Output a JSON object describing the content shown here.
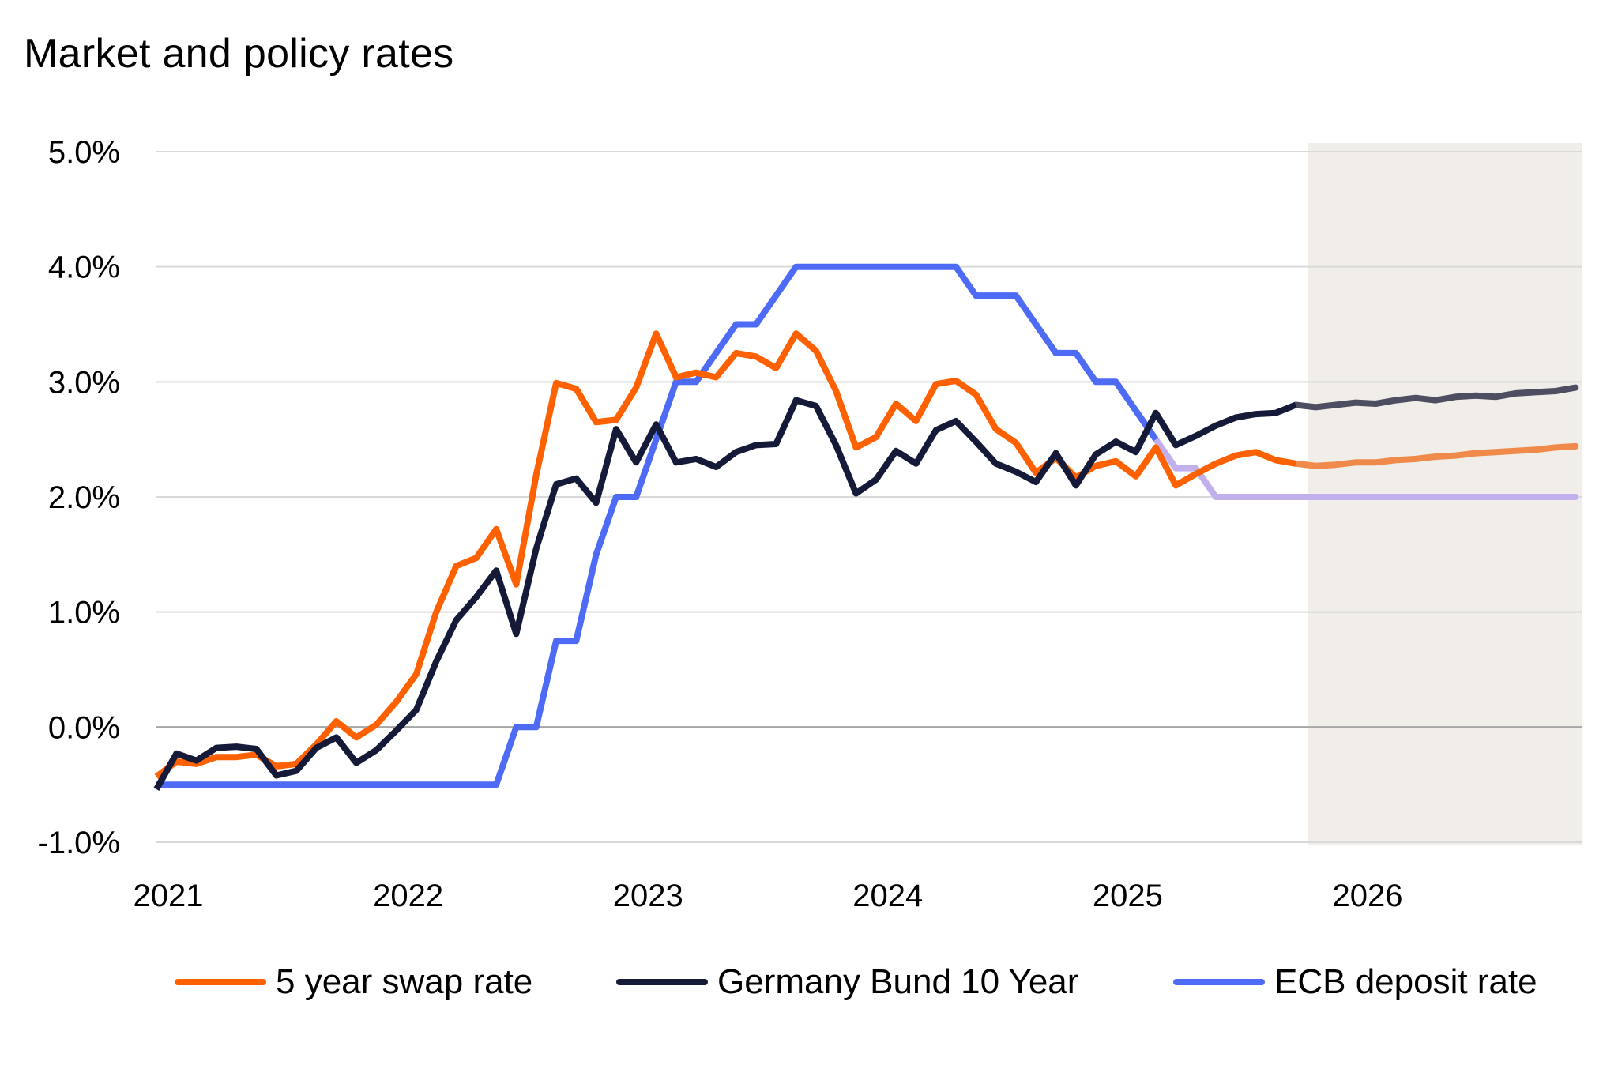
{
  "chart_data": {
    "type": "line",
    "title": "Market and policy rates",
    "xlabel": "",
    "ylabel": "",
    "ylim": [
      -1.0,
      5.0
    ],
    "yticks": [
      5.0,
      4.0,
      3.0,
      2.0,
      1.0,
      0.0,
      -1.0
    ],
    "ytick_labels": [
      "5.0%",
      "4.0%",
      "3.0%",
      "2.0%",
      "1.0%",
      "0.0%",
      "-1.0%"
    ],
    "xtick_labels": [
      "2021",
      "2022",
      "2023",
      "2024",
      "2025",
      "2026"
    ],
    "x_start": "2021-01",
    "x_frequency": "monthly",
    "n_periods": 72,
    "grid": true,
    "legend_position": "bottom",
    "forecast_shading": {
      "from_month_index": 57.6,
      "to_month_index": 71.3,
      "color": "#f1ede8"
    },
    "series": [
      {
        "name": "5 year swap rate",
        "color": "#ff6000",
        "forecast_color": "#f08a4b",
        "forecast_start_index": 57,
        "values": [
          -0.43,
          -0.3,
          -0.32,
          -0.26,
          -0.26,
          -0.24,
          -0.34,
          -0.32,
          -0.15,
          0.05,
          -0.09,
          0.02,
          0.22,
          0.46,
          1.0,
          1.4,
          1.47,
          1.72,
          1.24,
          2.19,
          2.99,
          2.94,
          2.65,
          2.67,
          2.95,
          3.42,
          3.04,
          3.08,
          3.04,
          3.25,
          3.22,
          3.12,
          3.42,
          3.27,
          2.92,
          2.43,
          2.52,
          2.81,
          2.66,
          2.98,
          3.01,
          2.89,
          2.59,
          2.47,
          2.21,
          2.34,
          2.17,
          2.27,
          2.31,
          2.18,
          2.43,
          2.1,
          2.2,
          2.29,
          2.36,
          2.39,
          2.32,
          2.29,
          2.27,
          2.28,
          2.3,
          2.3,
          2.32,
          2.33,
          2.35,
          2.36,
          2.38,
          2.39,
          2.4,
          2.41,
          2.43,
          2.44
        ]
      },
      {
        "name": "Germany Bund 10 Year",
        "color": "#141a38",
        "forecast_color": "#4e4e62",
        "forecast_start_index": 57,
        "values": [
          -0.54,
          -0.23,
          -0.29,
          -0.18,
          -0.17,
          -0.19,
          -0.42,
          -0.38,
          -0.18,
          -0.09,
          -0.31,
          -0.2,
          -0.03,
          0.15,
          0.57,
          0.93,
          1.13,
          1.36,
          0.81,
          1.55,
          2.11,
          2.16,
          1.95,
          2.59,
          2.3,
          2.63,
          2.3,
          2.33,
          2.26,
          2.39,
          2.45,
          2.46,
          2.84,
          2.79,
          2.45,
          2.03,
          2.15,
          2.4,
          2.29,
          2.58,
          2.66,
          2.48,
          2.29,
          2.22,
          2.13,
          2.38,
          2.1,
          2.37,
          2.48,
          2.39,
          2.73,
          2.45,
          2.53,
          2.62,
          2.69,
          2.72,
          2.73,
          2.8,
          2.78,
          2.8,
          2.82,
          2.81,
          2.84,
          2.86,
          2.84,
          2.87,
          2.88,
          2.87,
          2.9,
          2.91,
          2.92,
          2.95
        ]
      },
      {
        "name": "ECB deposit rate",
        "color": "#4d6bf5",
        "forecast_color": "#c2b0ec",
        "forecast_start_index": 50,
        "values": [
          -0.5,
          -0.5,
          -0.5,
          -0.5,
          -0.5,
          -0.5,
          -0.5,
          -0.5,
          -0.5,
          -0.5,
          -0.5,
          -0.5,
          -0.5,
          -0.5,
          -0.5,
          -0.5,
          -0.5,
          -0.5,
          0.0,
          0.0,
          0.75,
          0.75,
          1.5,
          2.0,
          2.0,
          2.5,
          3.0,
          3.0,
          3.25,
          3.5,
          3.5,
          3.75,
          4.0,
          4.0,
          4.0,
          4.0,
          4.0,
          4.0,
          4.0,
          4.0,
          4.0,
          3.75,
          3.75,
          3.75,
          3.5,
          3.25,
          3.25,
          3.0,
          3.0,
          2.75,
          2.5,
          2.25,
          2.25,
          2.0,
          2.0,
          2.0,
          2.0,
          2.0,
          2.0,
          2.0,
          2.0,
          2.0,
          2.0,
          2.0,
          2.0,
          2.0,
          2.0,
          2.0,
          2.0,
          2.0,
          2.0,
          2.0
        ]
      }
    ]
  },
  "colors": {
    "grid": "#d9d9d9",
    "zero_line": "#a6a6a6",
    "forecast_band": "#f1ede8"
  }
}
